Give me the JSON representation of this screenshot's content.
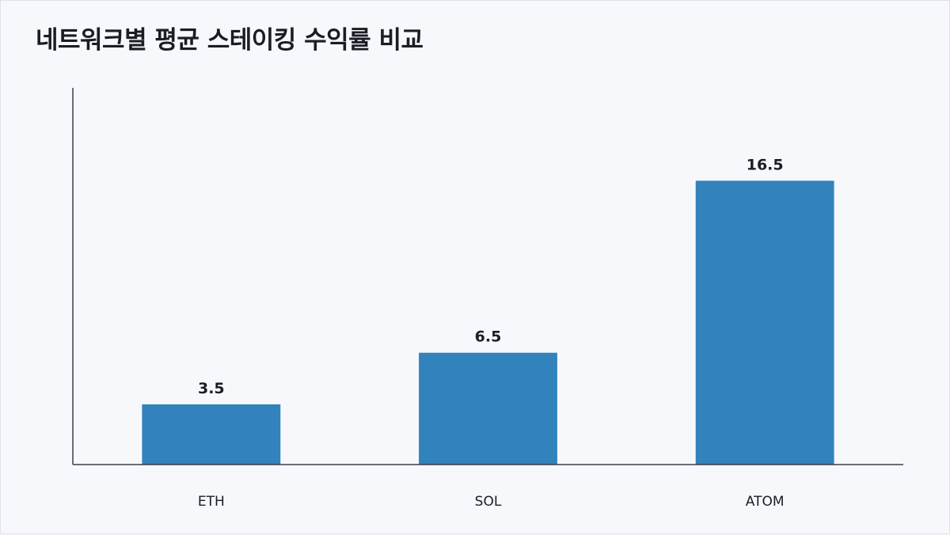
{
  "chart_data": {
    "type": "bar",
    "title": "네트워크별 평균 스테이킹 수익률 비교",
    "categories": [
      "ETH",
      "SOL",
      "ATOM"
    ],
    "values": [
      3.5,
      6.5,
      16.5
    ],
    "ylim": [
      0,
      21.9
    ],
    "grid": false,
    "legend": "none",
    "data_labels": true
  },
  "colors": {
    "bar": "#3282bb",
    "axis": "#3d3d4a",
    "background": "#f6f8fc",
    "text": "#1c1c24"
  }
}
